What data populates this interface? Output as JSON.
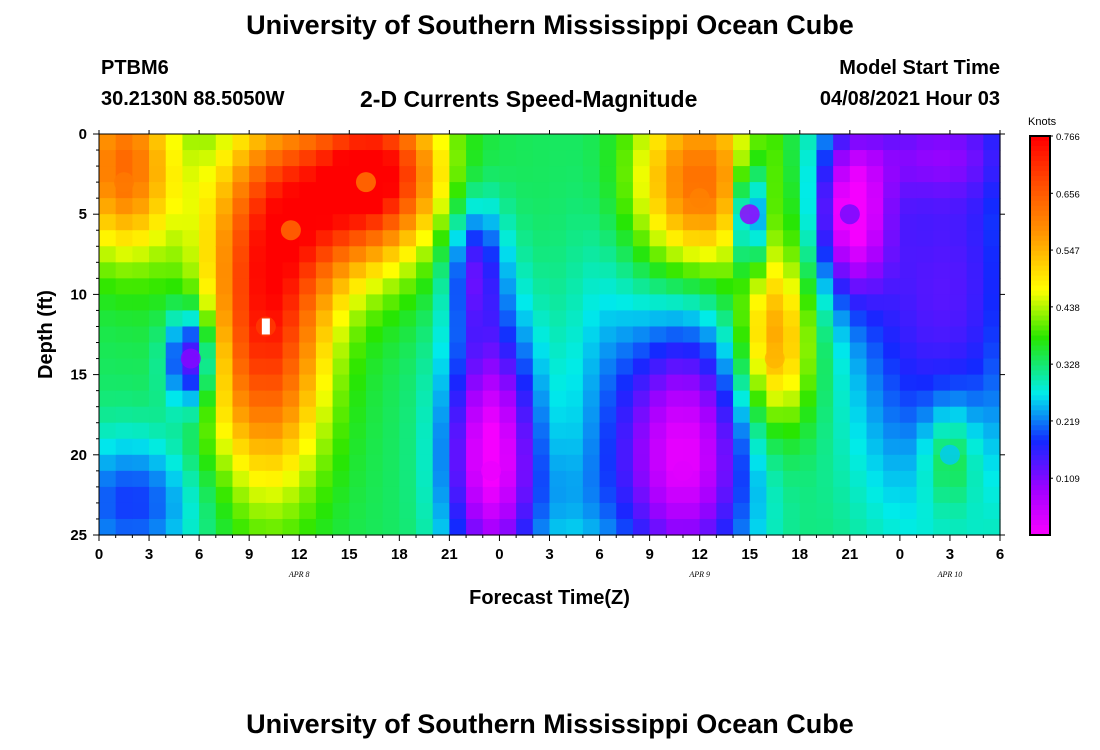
{
  "header": {
    "title": "University of Southern Mississippi Ocean Cube",
    "station_id": "PTBM6",
    "station_coords": "30.2130N  88.5050W",
    "product": "2-D Currents Speed-Magnitude",
    "model_label": "Model Start Time",
    "model_time": "04/08/2021 Hour 03"
  },
  "footer": {
    "title": "University of Southern Mississippi Ocean Cube"
  },
  "chart_data": {
    "type": "heatmap",
    "xlabel": "Forecast Time(Z)",
    "ylabel": "Depth (ft)",
    "xlim": [
      0,
      54
    ],
    "ylim": [
      25,
      0
    ],
    "x_tick_labels": [
      "0",
      "3",
      "6",
      "9",
      "12",
      "15",
      "18",
      "21",
      "0",
      "3",
      "6",
      "9",
      "12",
      "15",
      "18",
      "21",
      "0",
      "3",
      "6"
    ],
    "y_ticks": [
      0,
      5,
      10,
      15,
      20,
      25
    ],
    "date_labels": [
      {
        "label": "APR 8",
        "x": 12
      },
      {
        "label": "APR 9",
        "x": 36
      },
      {
        "label": "APR 10",
        "x": 51
      }
    ],
    "colorbar": {
      "unit": "Knots",
      "ticks": [
        "0.766",
        "0.656",
        "0.547",
        "0.438",
        "0.328",
        "0.219",
        "0.109"
      ],
      "min": 0.0,
      "max": 0.766
    },
    "features": [
      {
        "x": 1.5,
        "depth": 3,
        "value": 0.62
      },
      {
        "x": 11.5,
        "depth": 6,
        "value": 0.64
      },
      {
        "x": 10,
        "depth": 12,
        "value": 0.7
      },
      {
        "x": 16,
        "depth": 3,
        "value": 0.63
      },
      {
        "x": 5.5,
        "depth": 14,
        "value": 0.11
      },
      {
        "x": 23.5,
        "depth": 21,
        "value": 0.02
      },
      {
        "x": 35,
        "depth": 21,
        "value": 0.03
      },
      {
        "x": 36,
        "depth": 4,
        "value": 0.61
      },
      {
        "x": 39,
        "depth": 5,
        "value": 0.1
      },
      {
        "x": 40.5,
        "depth": 14,
        "value": 0.55
      },
      {
        "x": 45,
        "depth": 5,
        "value": 0.12
      },
      {
        "x": 51,
        "depth": 20,
        "value": 0.26
      }
    ]
  }
}
